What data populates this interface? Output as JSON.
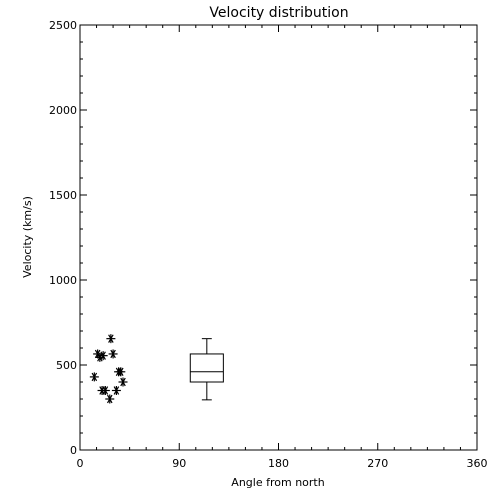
{
  "chart_data": {
    "type": "scatter",
    "title": "Velocity distribution",
    "xlabel": "Angle from north",
    "ylabel": "Velocity (km/s)",
    "xlim": [
      0,
      360
    ],
    "ylim": [
      0,
      2500
    ],
    "xticks": [
      "0",
      "90",
      "180",
      "270",
      "360"
    ],
    "yticks": [
      "0",
      "500",
      "1000",
      "1500",
      "2000",
      "2500"
    ],
    "grid": false,
    "marker": "asterisk",
    "points": [
      {
        "x": 28,
        "y": 655
      },
      {
        "x": 16,
        "y": 565
      },
      {
        "x": 21,
        "y": 555
      },
      {
        "x": 30,
        "y": 565
      },
      {
        "x": 18,
        "y": 545
      },
      {
        "x": 13,
        "y": 430
      },
      {
        "x": 35,
        "y": 460
      },
      {
        "x": 37,
        "y": 460
      },
      {
        "x": 39,
        "y": 400
      },
      {
        "x": 20,
        "y": 350
      },
      {
        "x": 23,
        "y": 350
      },
      {
        "x": 33,
        "y": 350
      },
      {
        "x": 27,
        "y": 300
      }
    ],
    "boxplot": {
      "x": 115,
      "width": 30,
      "min": 295,
      "q1": 400,
      "median": 460,
      "q3": 565,
      "max": 655
    }
  }
}
